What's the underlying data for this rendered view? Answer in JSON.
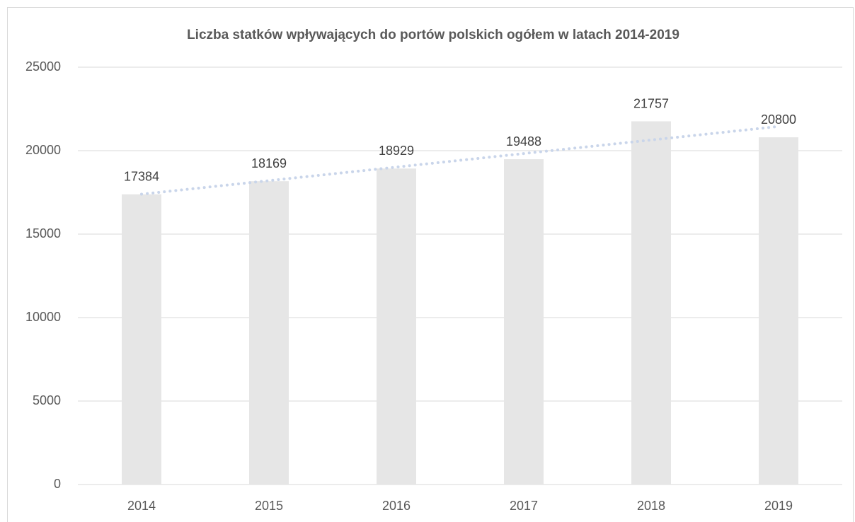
{
  "chart_data": {
    "type": "bar",
    "title": "Liczba statków wpływających do portów polskich ogółem w latach 2014-2019",
    "categories": [
      "2014",
      "2015",
      "2016",
      "2017",
      "2018",
      "2019"
    ],
    "values": [
      17384,
      18169,
      18929,
      19488,
      21757,
      20800
    ],
    "color": "#e6e6e6",
    "ylim": [
      0,
      25000
    ],
    "yticks": [
      0,
      5000,
      10000,
      15000,
      20000,
      25000
    ],
    "grid": true,
    "trendline": "linear",
    "trendline_color": "#c9d5ea"
  }
}
